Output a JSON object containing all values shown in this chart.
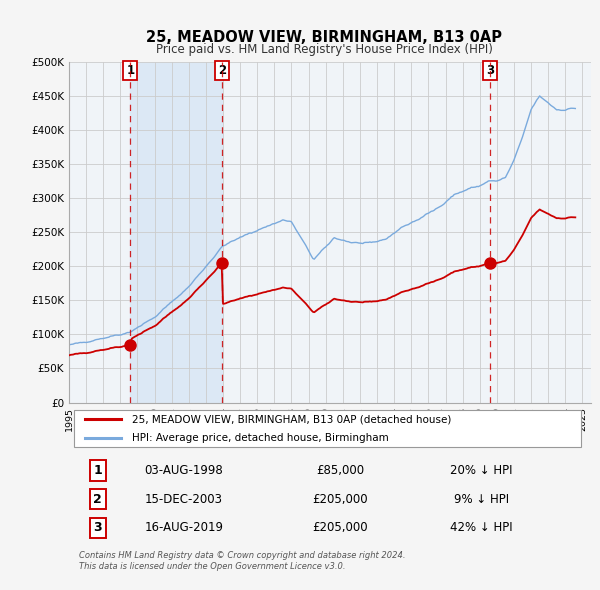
{
  "title": "25, MEADOW VIEW, BIRMINGHAM, B13 0AP",
  "subtitle": "Price paid vs. HM Land Registry's House Price Index (HPI)",
  "background_color": "#f5f5f5",
  "plot_bg_color": "#f0f4f8",
  "grid_color": "#cccccc",
  "red_line_color": "#cc0000",
  "blue_line_color": "#7aaadd",
  "shade_color": "#dce8f5",
  "ylim": [
    0,
    500000
  ],
  "yticks": [
    0,
    50000,
    100000,
    150000,
    200000,
    250000,
    300000,
    350000,
    400000,
    450000,
    500000
  ],
  "ytick_labels": [
    "£0",
    "£50K",
    "£100K",
    "£150K",
    "£200K",
    "£250K",
    "£300K",
    "£350K",
    "£400K",
    "£450K",
    "£500K"
  ],
  "xlim_start": 1995.0,
  "xlim_end": 2025.5,
  "xtick_years": [
    1995,
    1996,
    1997,
    1998,
    1999,
    2000,
    2001,
    2002,
    2003,
    2004,
    2005,
    2006,
    2007,
    2008,
    2009,
    2010,
    2011,
    2012,
    2013,
    2014,
    2015,
    2016,
    2017,
    2018,
    2019,
    2020,
    2021,
    2022,
    2023,
    2024,
    2025
  ],
  "sale_dates": [
    1998.586,
    2003.958,
    2019.622
  ],
  "sale_prices": [
    85000,
    205000,
    205000
  ],
  "sale_labels": [
    "1",
    "2",
    "3"
  ],
  "footer_text": "Contains HM Land Registry data © Crown copyright and database right 2024.\nThis data is licensed under the Open Government Licence v3.0.",
  "legend_line1": "25, MEADOW VIEW, BIRMINGHAM, B13 0AP (detached house)",
  "legend_line2": "HPI: Average price, detached house, Birmingham",
  "table_rows": [
    [
      "1",
      "03-AUG-1998",
      "£85,000",
      "20% ↓ HPI"
    ],
    [
      "2",
      "15-DEC-2003",
      "£205,000",
      "9% ↓ HPI"
    ],
    [
      "3",
      "16-AUG-2019",
      "£205,000",
      "42% ↓ HPI"
    ]
  ]
}
